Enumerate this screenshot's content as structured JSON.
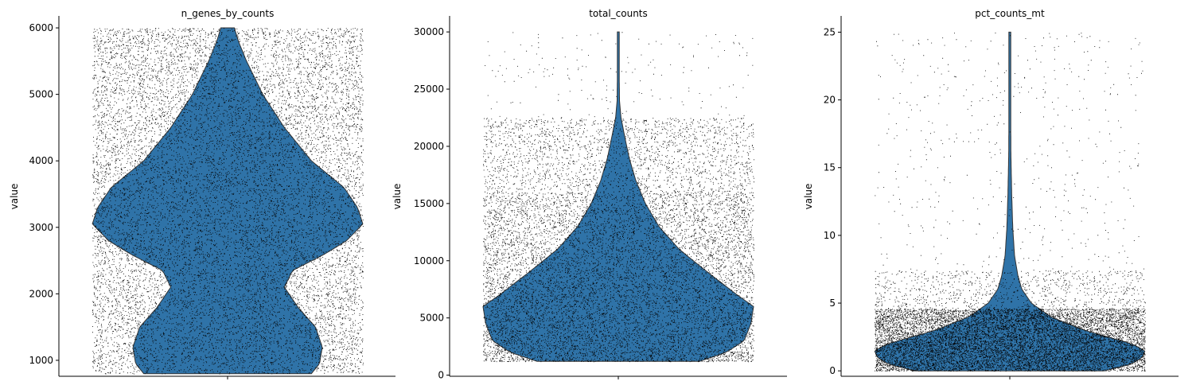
{
  "chart_data": [
    {
      "type": "violin",
      "title": "n_genes_by_counts",
      "xlabel": "",
      "ylabel": "value",
      "ylim": [
        760,
        6180
      ],
      "yticks": [
        1000,
        2000,
        3000,
        4000,
        5000,
        6000
      ],
      "ytick_labels": [
        "1000",
        "2000",
        "3000",
        "4000",
        "5000",
        "6000"
      ],
      "data_range": [
        800,
        6000
      ],
      "density": [
        [
          800,
          0.62
        ],
        [
          950,
          0.68
        ],
        [
          1200,
          0.7
        ],
        [
          1500,
          0.65
        ],
        [
          1800,
          0.52
        ],
        [
          2100,
          0.42
        ],
        [
          2350,
          0.48
        ],
        [
          2600,
          0.72
        ],
        [
          2800,
          0.88
        ],
        [
          3050,
          1.0
        ],
        [
          3300,
          0.96
        ],
        [
          3600,
          0.86
        ],
        [
          4000,
          0.62
        ],
        [
          4500,
          0.42
        ],
        [
          5000,
          0.26
        ],
        [
          5500,
          0.14
        ],
        [
          5800,
          0.08
        ],
        [
          6000,
          0.05
        ]
      ],
      "points": {
        "shown": true,
        "color": "#000000",
        "distribution": "uniform",
        "n_display": 14000
      }
    },
    {
      "type": "violin",
      "title": "total_counts",
      "xlabel": "",
      "ylabel": "value",
      "ylim": [
        -100,
        31400
      ],
      "yticks": [
        0,
        5000,
        10000,
        15000,
        20000,
        25000,
        30000
      ],
      "ytick_labels": [
        "0",
        "5000",
        "10000",
        "15000",
        "20000",
        "25000",
        "30000"
      ],
      "data_range": [
        1200,
        30000
      ],
      "density": [
        [
          1200,
          0.6
        ],
        [
          2000,
          0.8
        ],
        [
          3000,
          0.93
        ],
        [
          4500,
          0.98
        ],
        [
          6000,
          1.0
        ],
        [
          7000,
          0.88
        ],
        [
          9000,
          0.66
        ],
        [
          11000,
          0.45
        ],
        [
          13000,
          0.3
        ],
        [
          15000,
          0.2
        ],
        [
          17000,
          0.13
        ],
        [
          19000,
          0.08
        ],
        [
          21000,
          0.045
        ],
        [
          22500,
          0.02
        ],
        [
          24000,
          0.009
        ],
        [
          26000,
          0.007
        ],
        [
          30000,
          0.006
        ]
      ],
      "points": {
        "shown": true,
        "color": "#000000",
        "distribution": "skewed_low",
        "n_display": 12000
      }
    },
    {
      "type": "violin",
      "title": "pct_counts_mt",
      "xlabel": "",
      "ylabel": "value",
      "ylim": [
        -0.4,
        26.2
      ],
      "yticks": [
        0,
        5,
        10,
        15,
        20,
        25
      ],
      "ytick_labels": [
        "0",
        "5",
        "10",
        "15",
        "20",
        "25"
      ],
      "data_range": [
        0,
        25
      ],
      "density": [
        [
          0,
          0.7
        ],
        [
          0.5,
          0.9
        ],
        [
          1.0,
          0.98
        ],
        [
          1.5,
          1.0
        ],
        [
          2.0,
          0.9
        ],
        [
          3.0,
          0.55
        ],
        [
          4.0,
          0.3
        ],
        [
          5.0,
          0.16
        ],
        [
          6.0,
          0.09
        ],
        [
          7.0,
          0.06
        ],
        [
          8.5,
          0.035
        ],
        [
          10.5,
          0.022
        ],
        [
          13.0,
          0.014
        ],
        [
          16.0,
          0.008
        ],
        [
          20.0,
          0.006
        ],
        [
          25.0,
          0.005
        ]
      ],
      "points": {
        "shown": true,
        "color": "#000000",
        "distribution": "concentrated_low",
        "n_display": 12000
      }
    }
  ],
  "style": {
    "violin_fill": "#2f73a8",
    "violin_edge": "#333333",
    "point_color": "#000000",
    "axis_color": "#000000",
    "spines": [
      "left",
      "bottom"
    ],
    "grid": false
  }
}
